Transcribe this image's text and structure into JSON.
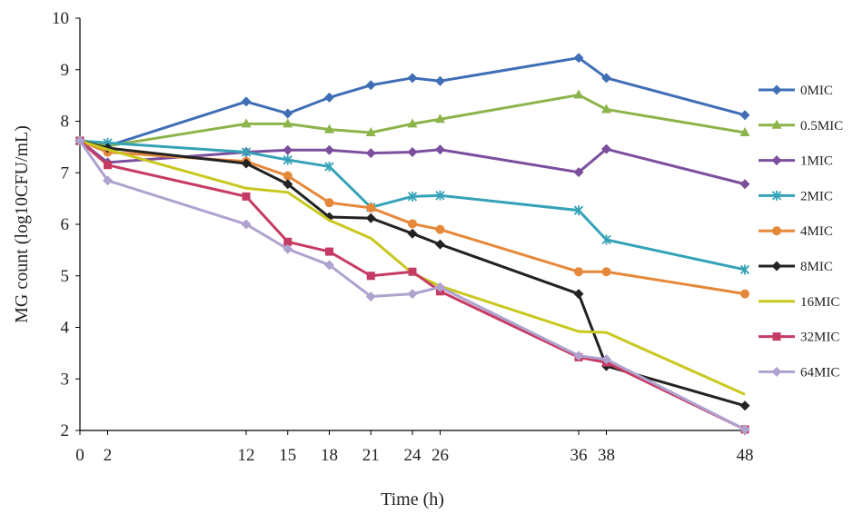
{
  "chart_data": {
    "type": "line",
    "title": "",
    "xlabel": "Time (h)",
    "ylabel": "MG count (log10CFU/mL)",
    "xlim": [
      0,
      48
    ],
    "ylim": [
      2,
      10
    ],
    "x_ticks": [
      0,
      2,
      12,
      15,
      18,
      21,
      24,
      26,
      36,
      38,
      48
    ],
    "y_ticks": [
      2,
      3,
      4,
      5,
      6,
      7,
      8,
      9,
      10
    ],
    "grid": false,
    "legend_position": "right",
    "x": [
      0,
      2,
      12,
      15,
      18,
      21,
      24,
      26,
      36,
      38,
      48
    ],
    "series": [
      {
        "name": "0MIC",
        "color": "#3F6EB5",
        "marker": "diamond",
        "values": [
          7.62,
          7.52,
          8.38,
          8.15,
          8.46,
          8.7,
          8.84,
          8.78,
          9.23,
          8.84,
          8.12
        ]
      },
      {
        "name": "0.5MIC",
        "color": "#8CB44A",
        "marker": "triangle",
        "values": [
          7.62,
          7.52,
          7.95,
          7.95,
          7.84,
          7.78,
          7.95,
          8.04,
          8.51,
          8.23,
          7.78
        ]
      },
      {
        "name": "1MIC",
        "color": "#7B4F9E",
        "marker": "diamond",
        "values": [
          7.62,
          7.2,
          7.4,
          7.44,
          7.44,
          7.38,
          7.4,
          7.45,
          7.01,
          7.46,
          6.78
        ]
      },
      {
        "name": "2MIC",
        "color": "#35A2B8",
        "marker": "star",
        "values": [
          7.62,
          7.58,
          7.4,
          7.25,
          7.12,
          6.33,
          6.54,
          6.56,
          6.27,
          5.7,
          5.12
        ]
      },
      {
        "name": "4MIC",
        "color": "#E6883A",
        "marker": "circle",
        "values": [
          7.62,
          7.4,
          7.22,
          6.94,
          6.42,
          6.32,
          6.01,
          5.9,
          5.08,
          5.08,
          4.65
        ]
      },
      {
        "name": "8MIC",
        "color": "#222222",
        "marker": "diamond",
        "values": [
          7.62,
          7.48,
          7.18,
          6.78,
          6.14,
          6.12,
          5.82,
          5.61,
          4.65,
          3.25,
          2.48
        ]
      },
      {
        "name": "16MIC",
        "color": "#C8C81E",
        "marker": "none",
        "values": [
          7.62,
          7.45,
          6.7,
          6.62,
          6.08,
          5.73,
          5.05,
          4.8,
          3.92,
          3.9,
          2.7
        ]
      },
      {
        "name": "32MIC",
        "color": "#C63B63",
        "marker": "square",
        "values": [
          7.62,
          7.15,
          6.54,
          5.66,
          5.47,
          5.0,
          5.08,
          4.7,
          3.42,
          3.32,
          2.02
        ]
      },
      {
        "name": "64MIC",
        "color": "#AFA2CF",
        "marker": "diamond",
        "values": [
          7.62,
          6.85,
          6.0,
          5.52,
          5.21,
          4.6,
          4.65,
          4.78,
          3.45,
          3.38,
          2.02
        ]
      }
    ]
  }
}
